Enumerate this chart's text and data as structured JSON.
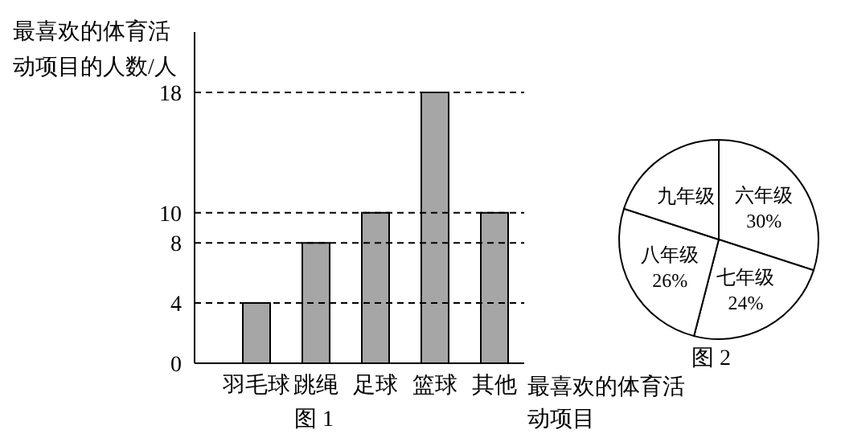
{
  "chart_data": [
    {
      "type": "bar",
      "title": "图 1",
      "xlabel": "最喜欢的体育活动项目",
      "ylabel": "最喜欢的体育活动项目的人数/人",
      "categories": [
        "羽毛球",
        "跳绳",
        "足球",
        "篮球",
        "其他"
      ],
      "values": [
        4,
        8,
        10,
        18,
        10
      ],
      "color": "#a6a6a6",
      "ylim": [
        0,
        22
      ],
      "yticks": [
        0,
        4,
        8,
        10,
        18
      ],
      "ref_lines": [
        {
          "axis": "y",
          "value": 4,
          "line_style": "dashed"
        },
        {
          "axis": "y",
          "value": 8,
          "line_style": "dashed"
        },
        {
          "axis": "y",
          "value": 10,
          "line_style": "dashed"
        },
        {
          "axis": "y",
          "value": 18,
          "line_style": "dashed"
        }
      ]
    },
    {
      "type": "pie",
      "title": "图 2",
      "categories": [
        "六年级",
        "七年级",
        "八年级",
        "九年级"
      ],
      "values": [
        30,
        24,
        26,
        20
      ],
      "colors": [
        "#ffffff",
        "#ffffff",
        "#ffffff",
        "#ffffff"
      ],
      "value_labels": [
        "30%",
        "24%",
        "26%",
        null
      ]
    }
  ]
}
